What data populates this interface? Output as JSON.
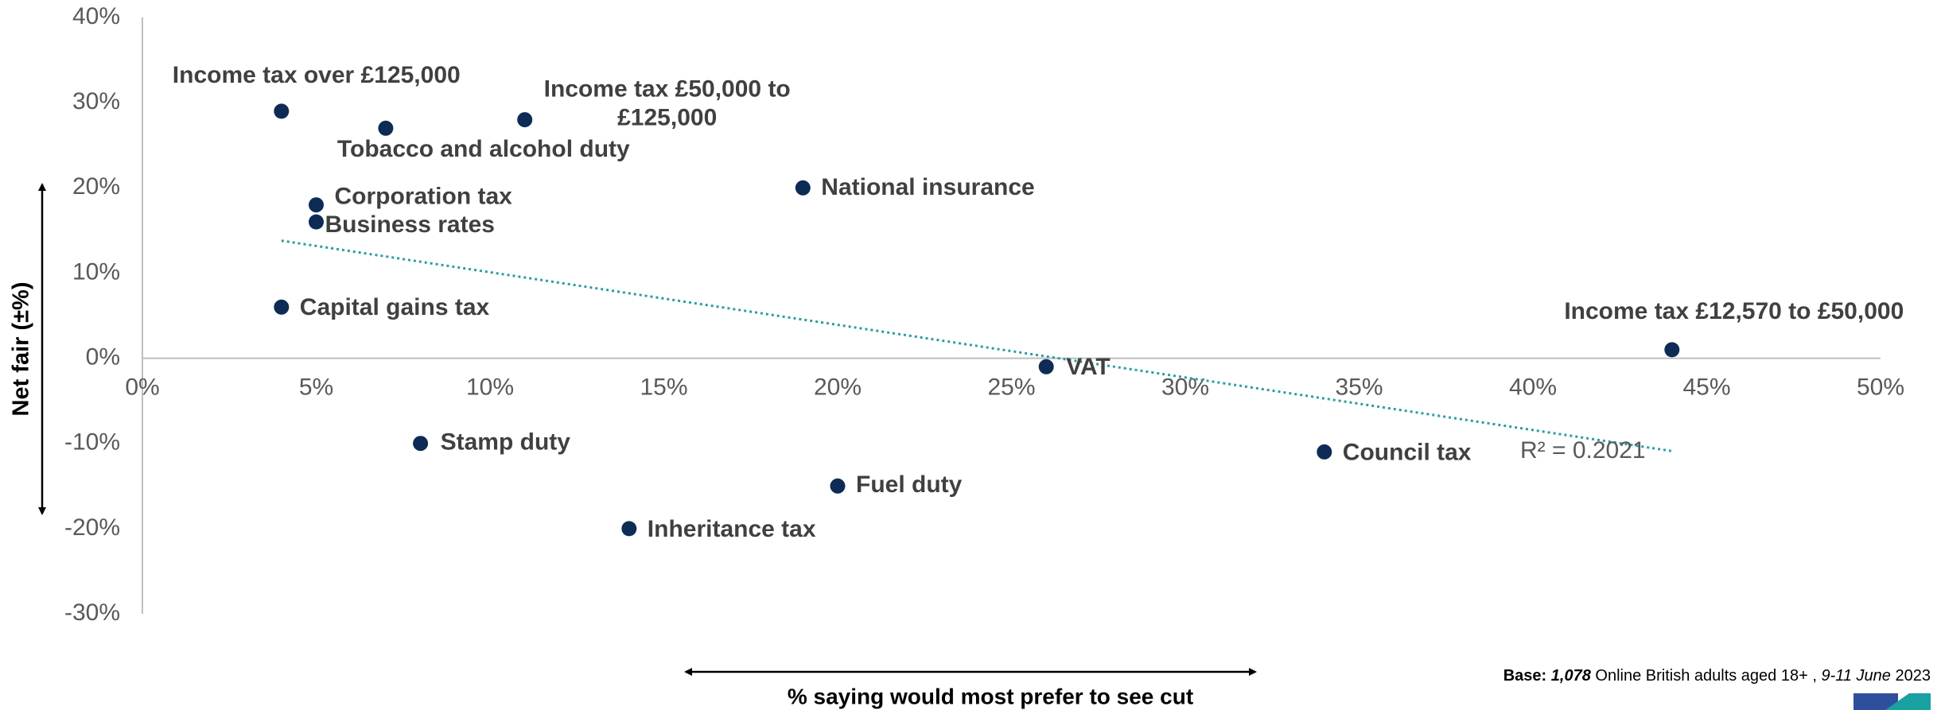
{
  "chart_data": {
    "type": "scatter",
    "x_label": "% saying would most prefer to see cut",
    "y_label": "Net fair (±%)",
    "labels": [
      "Income tax over £125,000",
      "Tobacco and alcohol duty",
      [
        "Income tax £50,000 to",
        "£125,000"
      ],
      "Corporation tax",
      "Business rates",
      "National insurance",
      "Capital gains tax",
      "Income tax £12,570 to £50,000",
      "VAT",
      "Stamp duty",
      "Council tax",
      "Fuel duty",
      "Inheritance tax"
    ],
    "x": [
      4,
      7,
      11,
      5,
      5,
      19,
      4,
      44,
      26,
      8,
      34,
      20,
      14
    ],
    "y": [
      29,
      27,
      28,
      18,
      16,
      20,
      6,
      1,
      -1,
      -10,
      -11,
      -15,
      -20
    ],
    "color": "#0d2b55",
    "xlim": [
      0,
      50
    ],
    "xticks": [
      {
        "value": 0,
        "label": "0%"
      },
      {
        "value": 5,
        "label": "5%"
      },
      {
        "value": 10,
        "label": "10%"
      },
      {
        "value": 15,
        "label": "15%"
      },
      {
        "value": 20,
        "label": "20%"
      },
      {
        "value": 25,
        "label": "25%"
      },
      {
        "value": 30,
        "label": "30%"
      },
      {
        "value": 35,
        "label": "35%"
      },
      {
        "value": 40,
        "label": "40%"
      },
      {
        "value": 45,
        "label": "45%"
      },
      {
        "value": 50,
        "label": "50%"
      }
    ],
    "ylim": [
      -30,
      40
    ],
    "yticks": [
      {
        "value": -30,
        "label": "-30%"
      },
      {
        "value": -20,
        "label": "-20%"
      },
      {
        "value": -10,
        "label": "-10%"
      },
      {
        "value": 0,
        "label": "0%"
      },
      {
        "value": 10,
        "label": "10%"
      },
      {
        "value": 20,
        "label": "20%"
      },
      {
        "value": 30,
        "label": "30%"
      },
      {
        "value": 40,
        "label": "40%"
      }
    ],
    "trendline": {
      "x": [
        4,
        44
      ],
      "y": [
        13.8,
        -10.9
      ],
      "color": "#2e9c9c",
      "label": "R² = 0.2021"
    },
    "note": {
      "prefix": "Base:",
      "base": "1,078",
      "text": " Online British adults aged 18+ , ",
      "dates": "9-11 June",
      "year": " 2023"
    }
  }
}
